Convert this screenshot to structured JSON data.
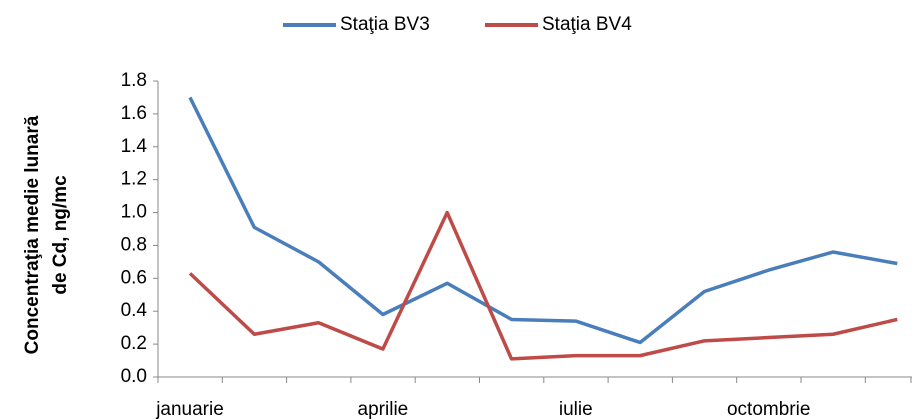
{
  "chart_data": {
    "type": "line",
    "y_axis_label": [
      "Concentraţia medie lunară",
      "de Cd, ng/mc"
    ],
    "categories": [
      "januarie",
      null,
      null,
      "aprilie",
      null,
      null,
      "iulie",
      null,
      null,
      "octombrie",
      null,
      null
    ],
    "series": [
      {
        "name": "Staţia BV3",
        "color": "#4a7ebb",
        "values": [
          1.7,
          0.91,
          0.7,
          0.38,
          0.57,
          0.35,
          0.34,
          0.21,
          0.52,
          0.65,
          0.76,
          0.69
        ]
      },
      {
        "name": "Staţia BV4",
        "color": "#be4b48",
        "values": [
          0.63,
          0.26,
          0.33,
          0.17,
          1.0,
          0.11,
          0.13,
          0.13,
          0.22,
          0.24,
          0.26,
          0.35
        ]
      }
    ],
    "ylim": [
      0,
      1.8
    ],
    "yticks": [
      {
        "value": 0,
        "label": "0.0"
      },
      0.2,
      0.4,
      0.6,
      0.8,
      {
        "value": 1,
        "label": "1.0"
      },
      1.2,
      1.4,
      1.6,
      1.8
    ],
    "legend": "top"
  }
}
